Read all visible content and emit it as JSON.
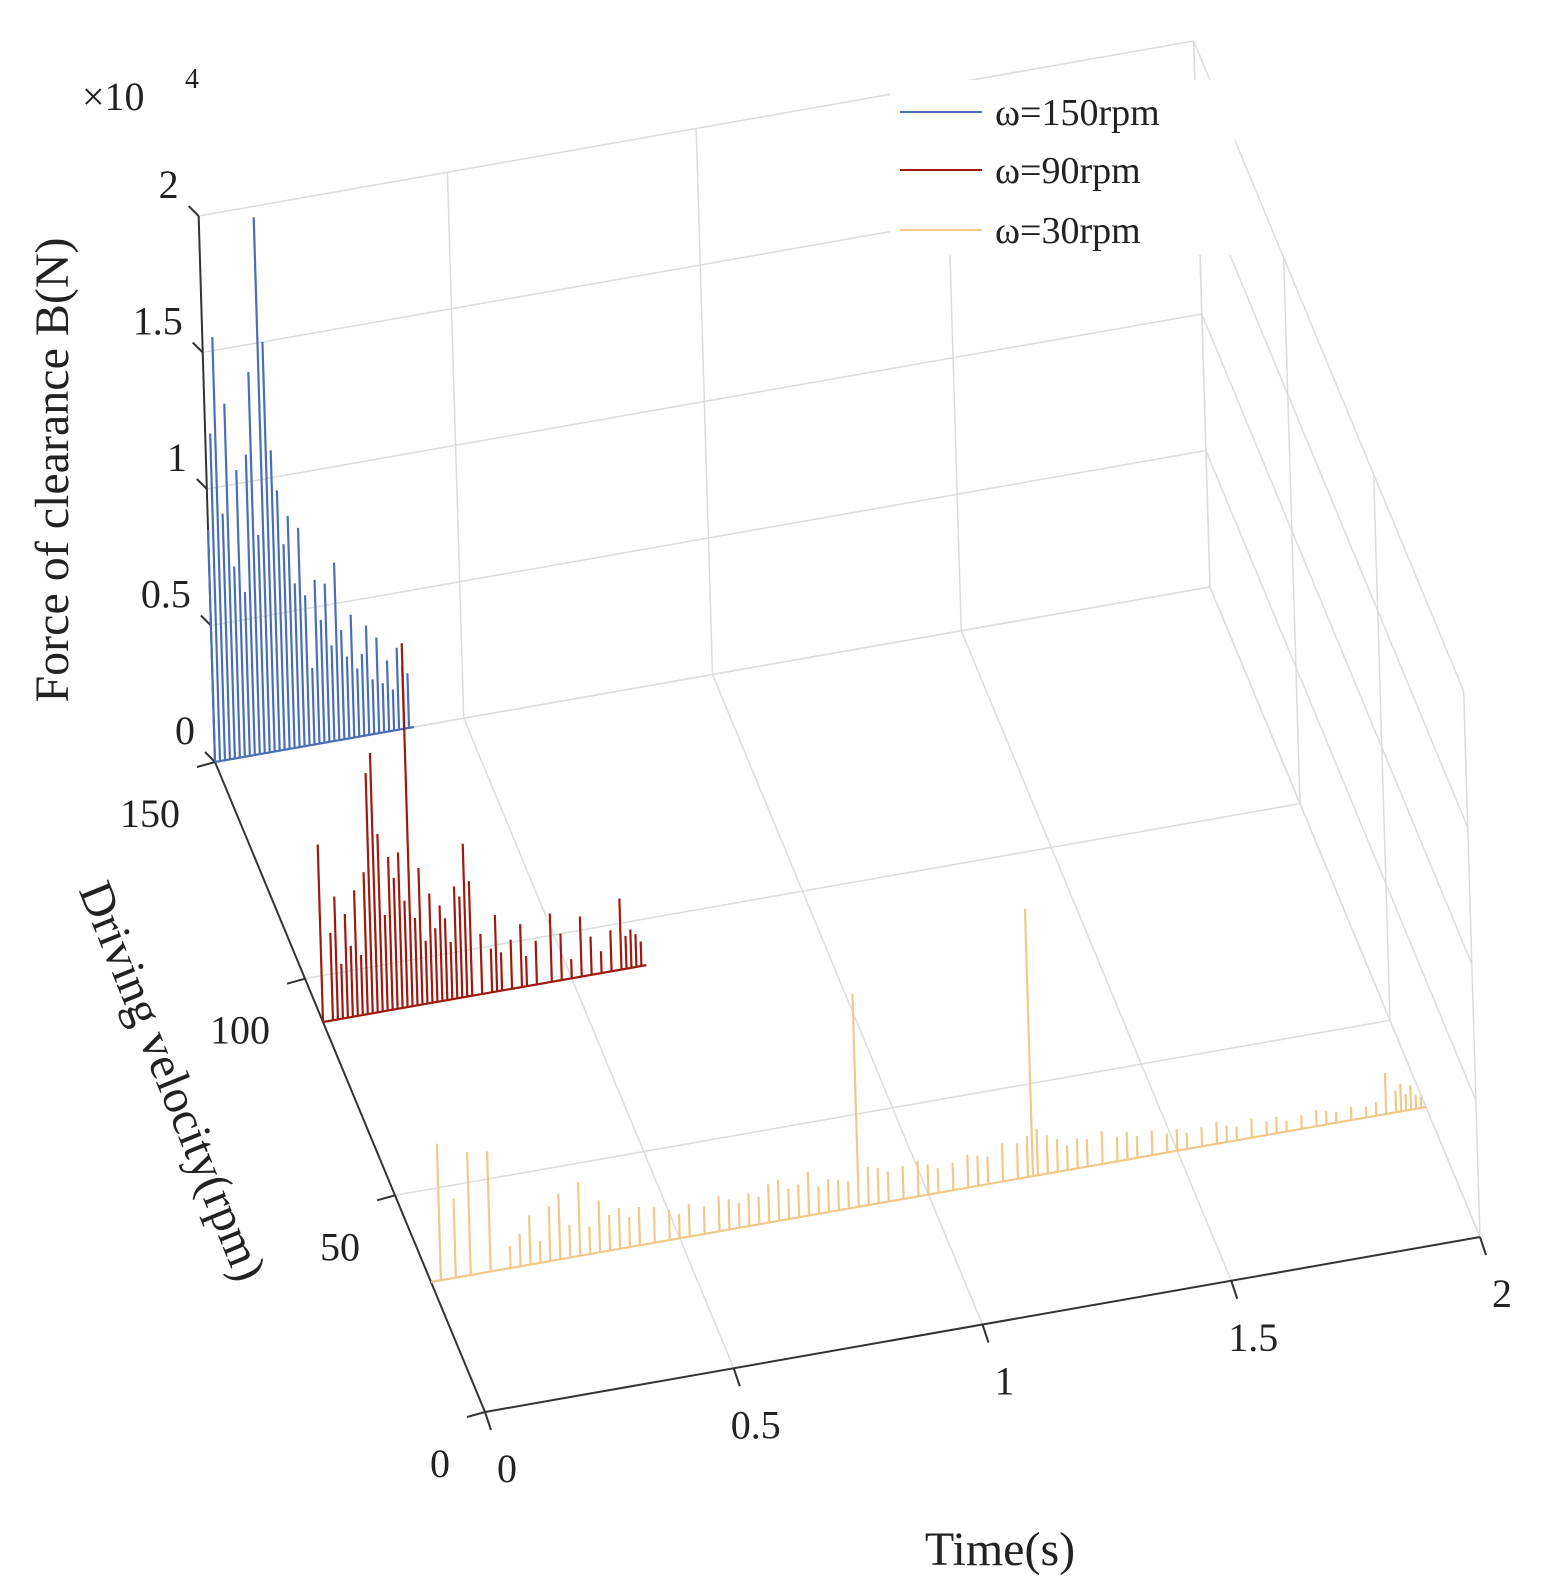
{
  "chart_data": {
    "type": "3d-stem-waterfall",
    "title": "",
    "xlabel": "Time(s)",
    "ylabel": "Driving velocity(rpm)",
    "zlabel": "Force of clearance B(N)",
    "z_multiplier": "×10",
    "z_exponent": "4",
    "xlim": [
      0,
      2
    ],
    "ylim": [
      0,
      150
    ],
    "zlim": [
      0,
      20000
    ],
    "x_ticks": [
      {
        "value": 0,
        "label": "0"
      },
      {
        "value": 0.5,
        "label": "0.5"
      },
      {
        "value": 1,
        "label": "1"
      },
      {
        "value": 1.5,
        "label": "1.5"
      },
      {
        "value": 2,
        "label": "2"
      }
    ],
    "y_ticks": [
      {
        "value": 0,
        "label": "0"
      },
      {
        "value": 50,
        "label": "50"
      },
      {
        "value": 100,
        "label": "100"
      },
      {
        "value": 150,
        "label": "150"
      }
    ],
    "z_ticks": [
      {
        "value": 0,
        "label": "0"
      },
      {
        "value": 5000,
        "label": "0.5"
      },
      {
        "value": 10000,
        "label": "1"
      },
      {
        "value": 15000,
        "label": "1.5"
      },
      {
        "value": 20000,
        "label": "2"
      }
    ],
    "legend_position": "top-right",
    "series": [
      {
        "name": "ω=150rpm",
        "velocity": 150,
        "color": "#4a6fb5",
        "t_end": 0.4,
        "samples": [
          [
            0.0,
            8500
          ],
          [
            0.01,
            12000
          ],
          [
            0.02,
            15500
          ],
          [
            0.03,
            9000
          ],
          [
            0.04,
            13000
          ],
          [
            0.05,
            7000
          ],
          [
            0.06,
            10500
          ],
          [
            0.07,
            6000
          ],
          [
            0.08,
            11000
          ],
          [
            0.09,
            14000
          ],
          [
            0.1,
            8000
          ],
          [
            0.11,
            19600
          ],
          [
            0.12,
            15000
          ],
          [
            0.13,
            11000
          ],
          [
            0.14,
            9500
          ],
          [
            0.15,
            7500
          ],
          [
            0.16,
            8500
          ],
          [
            0.17,
            6000
          ],
          [
            0.18,
            8000
          ],
          [
            0.19,
            5500
          ],
          [
            0.2,
            2800
          ],
          [
            0.21,
            6000
          ],
          [
            0.22,
            4500
          ],
          [
            0.23,
            5800
          ],
          [
            0.24,
            3500
          ],
          [
            0.25,
            6500
          ],
          [
            0.26,
            4000
          ],
          [
            0.27,
            3000
          ],
          [
            0.28,
            4500
          ],
          [
            0.29,
            2500
          ],
          [
            0.3,
            3000
          ],
          [
            0.31,
            4000
          ],
          [
            0.32,
            2000
          ],
          [
            0.33,
            3500
          ],
          [
            0.34,
            1800
          ],
          [
            0.35,
            2600
          ],
          [
            0.36,
            1500
          ],
          [
            0.37,
            3000
          ],
          [
            0.38,
            2300
          ],
          [
            0.39,
            2000
          ]
        ]
      },
      {
        "name": "ω=90rpm",
        "velocity": 90,
        "color": "#9c1a10",
        "t_end": 0.65,
        "samples": [
          [
            0.0,
            6500
          ],
          [
            0.02,
            3200
          ],
          [
            0.03,
            4500
          ],
          [
            0.04,
            2000
          ],
          [
            0.05,
            3800
          ],
          [
            0.06,
            2600
          ],
          [
            0.07,
            4600
          ],
          [
            0.08,
            2200
          ],
          [
            0.09,
            5200
          ],
          [
            0.1,
            8800
          ],
          [
            0.11,
            9500
          ],
          [
            0.12,
            6500
          ],
          [
            0.13,
            3500
          ],
          [
            0.14,
            5600
          ],
          [
            0.15,
            4800
          ],
          [
            0.16,
            5700
          ],
          [
            0.17,
            3900
          ],
          [
            0.18,
            13300
          ],
          [
            0.19,
            3200
          ],
          [
            0.2,
            5000
          ],
          [
            0.21,
            2300
          ],
          [
            0.22,
            4000
          ],
          [
            0.23,
            2700
          ],
          [
            0.24,
            3500
          ],
          [
            0.25,
            3000
          ],
          [
            0.26,
            2100
          ],
          [
            0.27,
            4100
          ],
          [
            0.28,
            3700
          ],
          [
            0.29,
            5600
          ],
          [
            0.3,
            4200
          ],
          [
            0.32,
            2200
          ],
          [
            0.34,
            1600
          ],
          [
            0.35,
            2800
          ],
          [
            0.36,
            1400
          ],
          [
            0.38,
            1800
          ],
          [
            0.4,
            2300
          ],
          [
            0.41,
            1100
          ],
          [
            0.43,
            1600
          ],
          [
            0.46,
            2500
          ],
          [
            0.48,
            1700
          ],
          [
            0.5,
            700
          ],
          [
            0.52,
            2200
          ],
          [
            0.54,
            1400
          ],
          [
            0.56,
            800
          ],
          [
            0.58,
            1500
          ],
          [
            0.6,
            2600
          ],
          [
            0.61,
            1200
          ],
          [
            0.62,
            1400
          ],
          [
            0.63,
            1200
          ],
          [
            0.64,
            900
          ]
        ]
      },
      {
        "name": "ω=30rpm",
        "velocity": 30,
        "color": "#f0c98a",
        "t_end": 2.0,
        "samples": [
          [
            0.02,
            5000
          ],
          [
            0.05,
            2900
          ],
          [
            0.08,
            4500
          ],
          [
            0.12,
            4400
          ],
          [
            0.16,
            800
          ],
          [
            0.18,
            1200
          ],
          [
            0.2,
            1800
          ],
          [
            0.22,
            800
          ],
          [
            0.24,
            2000
          ],
          [
            0.26,
            2400
          ],
          [
            0.28,
            1200
          ],
          [
            0.3,
            2700
          ],
          [
            0.32,
            1000
          ],
          [
            0.34,
            1900
          ],
          [
            0.36,
            1300
          ],
          [
            0.38,
            1500
          ],
          [
            0.4,
            1100
          ],
          [
            0.42,
            1400
          ],
          [
            0.45,
            1300
          ],
          [
            0.48,
            1100
          ],
          [
            0.5,
            900
          ],
          [
            0.52,
            1200
          ],
          [
            0.55,
            1000
          ],
          [
            0.58,
            1300
          ],
          [
            0.6,
            1100
          ],
          [
            0.62,
            900
          ],
          [
            0.64,
            1200
          ],
          [
            0.66,
            1000
          ],
          [
            0.68,
            1400
          ],
          [
            0.7,
            1500
          ],
          [
            0.72,
            1100
          ],
          [
            0.74,
            1200
          ],
          [
            0.76,
            1600
          ],
          [
            0.78,
            1000
          ],
          [
            0.8,
            1200
          ],
          [
            0.82,
            1100
          ],
          [
            0.84,
            1000
          ],
          [
            0.86,
            7800
          ],
          [
            0.88,
            1400
          ],
          [
            0.9,
            1300
          ],
          [
            0.92,
            1100
          ],
          [
            0.95,
            1200
          ],
          [
            0.98,
            1300
          ],
          [
            1.0,
            1100
          ],
          [
            1.02,
            900
          ],
          [
            1.05,
            1000
          ],
          [
            1.08,
            1200
          ],
          [
            1.1,
            1100
          ],
          [
            1.12,
            1000
          ],
          [
            1.15,
            1400
          ],
          [
            1.18,
            1300
          ],
          [
            1.2,
            1500
          ],
          [
            1.21,
            9800
          ],
          [
            1.22,
            1700
          ],
          [
            1.24,
            1400
          ],
          [
            1.26,
            1200
          ],
          [
            1.28,
            900
          ],
          [
            1.3,
            1100
          ],
          [
            1.32,
            1000
          ],
          [
            1.35,
            1200
          ],
          [
            1.38,
            900
          ],
          [
            1.4,
            1000
          ],
          [
            1.42,
            800
          ],
          [
            1.45,
            900
          ],
          [
            1.48,
            700
          ],
          [
            1.5,
            800
          ],
          [
            1.52,
            600
          ],
          [
            1.55,
            700
          ],
          [
            1.58,
            800
          ],
          [
            1.6,
            600
          ],
          [
            1.62,
            500
          ],
          [
            1.65,
            700
          ],
          [
            1.68,
            500
          ],
          [
            1.7,
            600
          ],
          [
            1.72,
            400
          ],
          [
            1.75,
            500
          ],
          [
            1.78,
            600
          ],
          [
            1.8,
            500
          ],
          [
            1.82,
            400
          ],
          [
            1.85,
            500
          ],
          [
            1.88,
            400
          ],
          [
            1.9,
            500
          ],
          [
            1.92,
            1500
          ],
          [
            1.94,
            800
          ],
          [
            1.95,
            1000
          ],
          [
            1.96,
            600
          ],
          [
            1.97,
            900
          ],
          [
            1.98,
            500
          ],
          [
            1.99,
            400
          ]
        ]
      }
    ]
  }
}
